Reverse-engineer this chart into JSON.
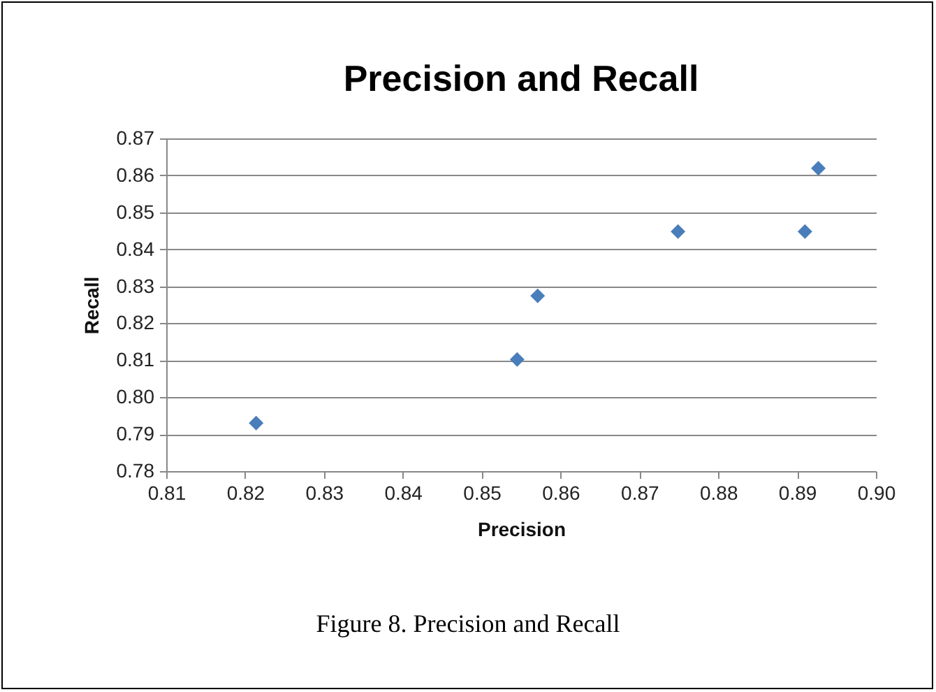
{
  "chart_data": {
    "type": "scatter",
    "title": "Precision and Recall",
    "xlabel": "Precision",
    "ylabel": "Recall",
    "x": [
      0.8214,
      0.8545,
      0.8571,
      0.8749,
      0.891,
      0.8927
    ],
    "series": [
      {
        "color": "#4a7ebb",
        "values": [
          0.793,
          0.8102,
          0.8274,
          0.8448,
          0.8448,
          0.8619
        ]
      }
    ],
    "xlim": [
      0.81,
      0.9
    ],
    "xticks": [
      0.81,
      0.82,
      0.83,
      0.84,
      0.85,
      0.86,
      0.87,
      0.88,
      0.89,
      {
        "value": 0.9,
        "label": "0.90"
      }
    ],
    "ylim": [
      0.78,
      0.87
    ],
    "yticks": [
      0.78,
      0.79,
      {
        "value": 0.8,
        "label": "0.80"
      },
      0.81,
      0.82,
      0.83,
      0.84,
      0.85,
      0.86,
      0.87
    ],
    "grid": "y",
    "marker": "diamond",
    "annotations": [
      "Figure 8. Precision and Recall"
    ]
  }
}
